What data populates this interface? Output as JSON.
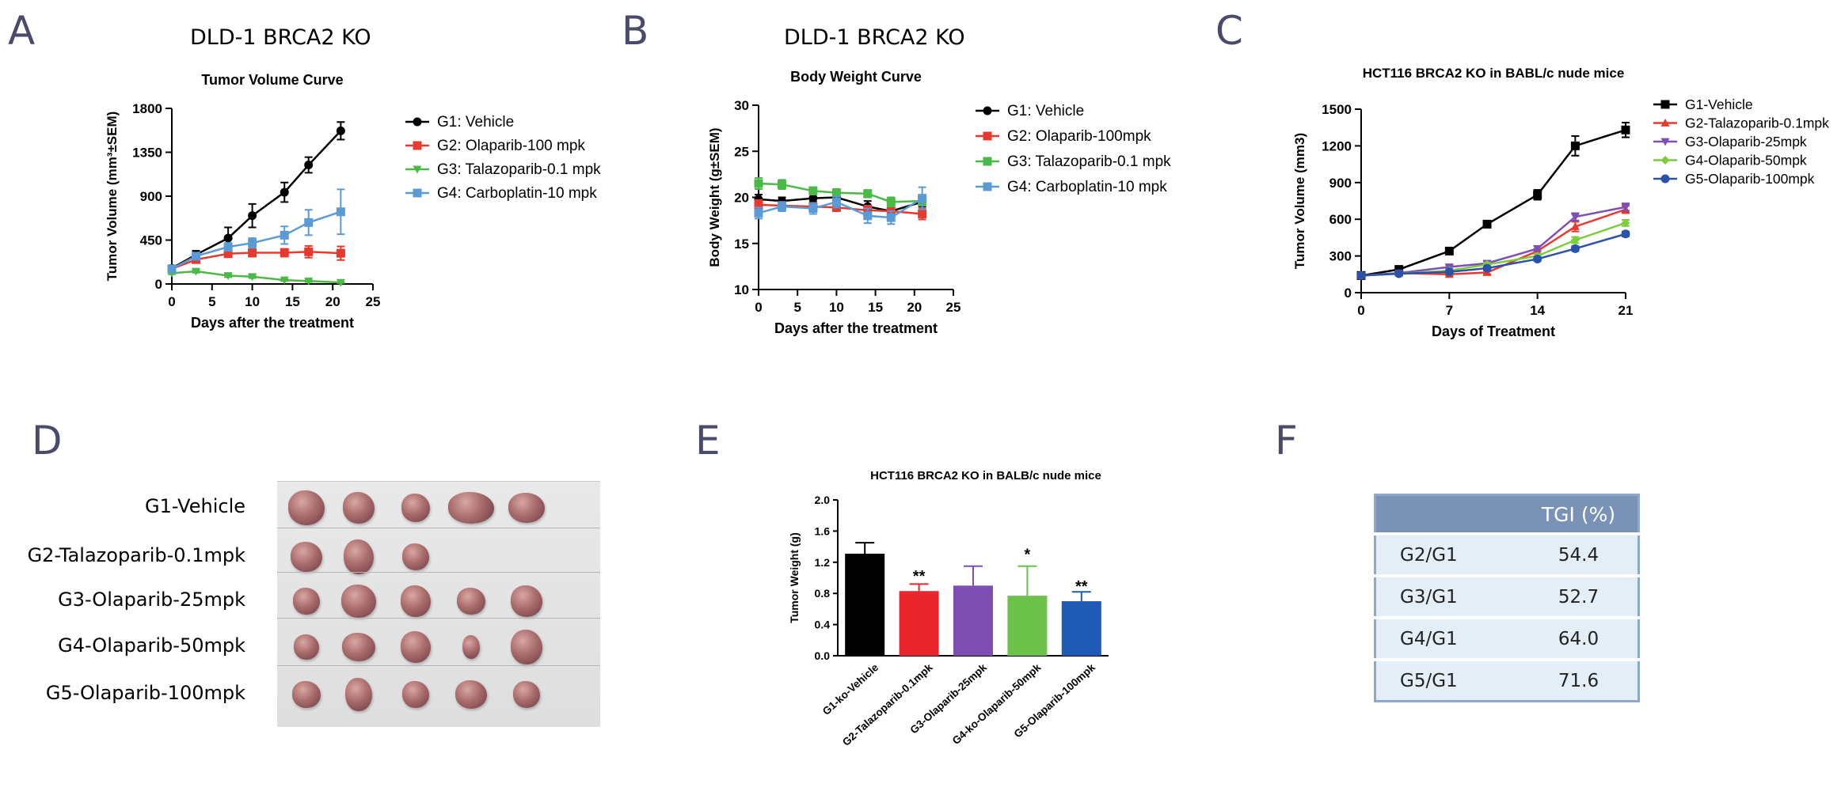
{
  "panel_letters": {
    "a": "A",
    "b": "B",
    "c": "C",
    "d": "D",
    "e": "E",
    "f": "F"
  },
  "charts_titles": {
    "a": "DLD-1 BRCA2 KO",
    "b": "DLD-1 BRCA2 KO"
  },
  "colors": {
    "black": "#000000",
    "red": "#e8392f",
    "green": "#4cb848",
    "blue": "#5b9bd5",
    "purple": "#7e4fb3",
    "lime": "#7ccc3c",
    "navy": "#2a52a8"
  },
  "chart_data": [
    {
      "id": "A",
      "type": "line",
      "title": "Tumor Volume Curve",
      "xlabel": "Days after the treatment",
      "ylabel": "Tumor Volume (mm³±SEM)",
      "xlim": [
        0,
        25
      ],
      "ylim": [
        0,
        1800
      ],
      "xticks": [
        0,
        5,
        10,
        15,
        20,
        25
      ],
      "yticks": [
        0,
        450,
        900,
        1350,
        1800
      ],
      "legend": "right",
      "x": [
        0,
        3,
        7,
        10,
        14,
        17,
        21
      ],
      "series": [
        {
          "name": "G1: Vehicle",
          "color": "#000000",
          "marker": "circle",
          "values": [
            160,
            300,
            470,
            700,
            940,
            1220,
            1570
          ],
          "err": [
            20,
            40,
            110,
            120,
            100,
            80,
            90
          ]
        },
        {
          "name": "G2: Olaparib-100 mpk",
          "color": "#e8392f",
          "marker": "square",
          "values": [
            155,
            250,
            310,
            320,
            320,
            330,
            315
          ],
          "err": [
            15,
            30,
            30,
            40,
            40,
            60,
            70
          ]
        },
        {
          "name": "G3: Talazoparib-0.1 mpk",
          "color": "#4cb848",
          "marker": "triangle-down",
          "values": [
            110,
            130,
            85,
            75,
            40,
            30,
            15
          ],
          "err": [
            10,
            15,
            15,
            15,
            10,
            10,
            5
          ]
        },
        {
          "name": "G4: Carboplatin-10 mpk",
          "color": "#5b9bd5",
          "marker": "square",
          "values": [
            155,
            285,
            380,
            420,
            500,
            630,
            740
          ],
          "err": [
            20,
            30,
            40,
            50,
            90,
            130,
            230
          ]
        }
      ]
    },
    {
      "id": "B",
      "type": "line",
      "title": "Body Weight Curve",
      "xlabel": "Days after the treatment",
      "ylabel": "Body Weight (g±SEM)",
      "xlim": [
        0,
        25
      ],
      "ylim": [
        10,
        30
      ],
      "xticks": [
        0,
        5,
        10,
        15,
        20,
        25
      ],
      "yticks": [
        10,
        15,
        20,
        25,
        30
      ],
      "legend": "right",
      "x": [
        0,
        3,
        7,
        10,
        14,
        17,
        21
      ],
      "series": [
        {
          "name": "G1: Vehicle",
          "color": "#000000",
          "marker": "circle",
          "values": [
            19.8,
            19.6,
            19.9,
            20.0,
            19.0,
            18.5,
            19.5
          ],
          "err": [
            0.5,
            0.4,
            0.4,
            0.5,
            0.6,
            0.6,
            0.5
          ]
        },
        {
          "name": "G2: Olaparib-100mpk",
          "color": "#e8392f",
          "marker": "square",
          "values": [
            19.2,
            19.1,
            19.0,
            18.9,
            18.6,
            18.5,
            18.2
          ],
          "err": [
            0.5,
            0.4,
            0.4,
            0.4,
            0.5,
            0.6,
            0.6
          ]
        },
        {
          "name": "G3: Talazoparib-0.1 mpk",
          "color": "#4cb848",
          "marker": "square",
          "values": [
            21.5,
            21.4,
            20.7,
            20.5,
            20.4,
            19.5,
            19.6
          ],
          "err": [
            0.6,
            0.5,
            0.4,
            0.4,
            0.4,
            0.5,
            0.5
          ]
        },
        {
          "name": "G4: Carboplatin-10 mpk",
          "color": "#5b9bd5",
          "marker": "square",
          "values": [
            18.3,
            19.0,
            18.8,
            19.5,
            18.0,
            17.8,
            19.9
          ],
          "err": [
            0.6,
            0.5,
            0.6,
            0.6,
            0.8,
            0.7,
            1.2
          ]
        }
      ]
    },
    {
      "id": "C",
      "type": "line",
      "title": "HCT116 BRCA2 KO in BABL/c nude mice",
      "xlabel": "Days of Treatment",
      "ylabel": "Tumor Volume (mm3)",
      "xlim": [
        0,
        21
      ],
      "ylim": [
        0,
        1500
      ],
      "xticks": [
        0,
        7,
        14,
        21
      ],
      "yticks": [
        0,
        300,
        600,
        900,
        1200,
        1500
      ],
      "legend": "right",
      "x": [
        0,
        3,
        7,
        10,
        14,
        17,
        21
      ],
      "series": [
        {
          "name": "G1-Vehicle",
          "color": "#000000",
          "marker": "square",
          "values": [
            140,
            190,
            340,
            560,
            800,
            1200,
            1330
          ],
          "err": [
            10,
            15,
            20,
            25,
            40,
            80,
            60
          ]
        },
        {
          "name": "G2-Talazoparib-0.1mpk",
          "color": "#e8392f",
          "marker": "triangle-up",
          "values": [
            140,
            160,
            150,
            165,
            340,
            540,
            680
          ],
          "err": [
            10,
            10,
            10,
            15,
            20,
            40,
            30
          ]
        },
        {
          "name": "G3-Olaparib-25mpk",
          "color": "#7e4fb3",
          "marker": "triangle-down",
          "values": [
            140,
            160,
            210,
            240,
            360,
            620,
            700
          ],
          "err": [
            10,
            10,
            15,
            15,
            20,
            30,
            30
          ]
        },
        {
          "name": "G4-Olaparib-50mpk",
          "color": "#7ccc3c",
          "marker": "diamond",
          "values": [
            140,
            155,
            180,
            230,
            300,
            430,
            570
          ],
          "err": [
            10,
            10,
            10,
            15,
            20,
            25,
            25
          ]
        },
        {
          "name": "G5-Olaparib-100mpk",
          "color": "#2a52a8",
          "marker": "circle",
          "values": [
            140,
            155,
            170,
            200,
            275,
            360,
            480
          ],
          "err": [
            10,
            10,
            10,
            12,
            15,
            20,
            20
          ]
        }
      ]
    },
    {
      "id": "E",
      "type": "bar",
      "title": "HCT116 BRCA2 KO in BALB/c nude mice",
      "ylabel": "Tumor Weight (g)",
      "ylim": [
        0,
        2.0
      ],
      "yticks": [
        "0.0",
        "0.4",
        "0.8",
        "1.2",
        "1.6",
        "2.0"
      ],
      "categories": [
        "G1-ko-Vehicle",
        "G2-Talazoparib-0.1mpk",
        "G3-Olaparib-25mpk",
        "G4-ko-Olaparib-50mpk",
        "G5-Olaparib-100mpk"
      ],
      "values": [
        1.31,
        0.83,
        0.9,
        0.77,
        0.7
      ],
      "err": [
        0.14,
        0.09,
        0.25,
        0.38,
        0.12
      ],
      "colors": [
        "#000000",
        "#e8262b",
        "#7e4fb3",
        "#6cc24a",
        "#1f5bb5"
      ],
      "significance": [
        "",
        "**",
        "",
        "*",
        "**"
      ]
    }
  ],
  "photo": {
    "groups": [
      {
        "label": "G1-Vehicle",
        "count": 5
      },
      {
        "label": "G2-Talazoparib-0.1mpk",
        "count": 3
      },
      {
        "label": "G3-Olaparib-25mpk",
        "count": 5
      },
      {
        "label": "G4-Olaparib-50mpk",
        "count": 5
      },
      {
        "label": "G5-Olaparib-100mpk",
        "count": 5
      }
    ]
  },
  "tgi": {
    "header": "TGI (%)",
    "rows": [
      {
        "group": "G2/G1",
        "value": "54.4"
      },
      {
        "group": "G3/G1",
        "value": "52.7"
      },
      {
        "group": "G4/G1",
        "value": "64.0"
      },
      {
        "group": "G5/G1",
        "value": "71.6"
      }
    ]
  }
}
